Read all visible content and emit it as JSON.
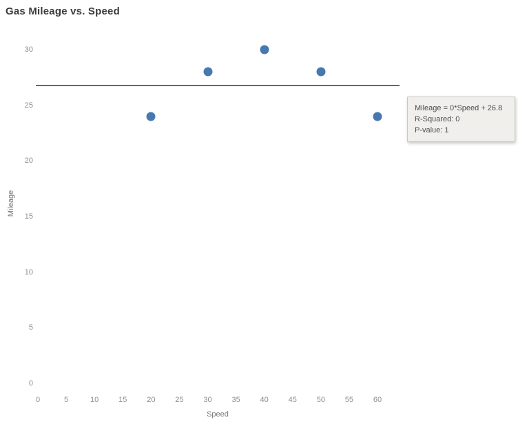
{
  "title": "Gas Mileage vs. Speed",
  "chart_data": {
    "type": "scatter",
    "x": [
      20,
      30,
      40,
      50,
      60
    ],
    "y": [
      24,
      28,
      30,
      28,
      24
    ],
    "title": "Gas Mileage vs. Speed",
    "xlabel": "Speed",
    "ylabel": "Mileage",
    "xlim": [
      0,
      64
    ],
    "ylim": [
      0,
      31
    ],
    "x_ticks": [
      0,
      5,
      10,
      15,
      20,
      25,
      30,
      35,
      40,
      45,
      50,
      55,
      60
    ],
    "y_ticks": [
      0,
      5,
      10,
      15,
      20,
      25,
      30
    ],
    "grid": false,
    "legend": "none",
    "marker_color": "#4878b0",
    "trend_line": {
      "type": "linear",
      "slope": 0,
      "intercept": 26.8,
      "value": 26.8,
      "color": "#565656",
      "equation": "Mileage = 0*Speed + 26.8",
      "r_squared": 0,
      "p_value": 1
    }
  },
  "tooltip": {
    "lines": [
      "Mileage = 0*Speed + 26.8",
      "R-Squared: 0",
      "P-value: 1"
    ]
  }
}
